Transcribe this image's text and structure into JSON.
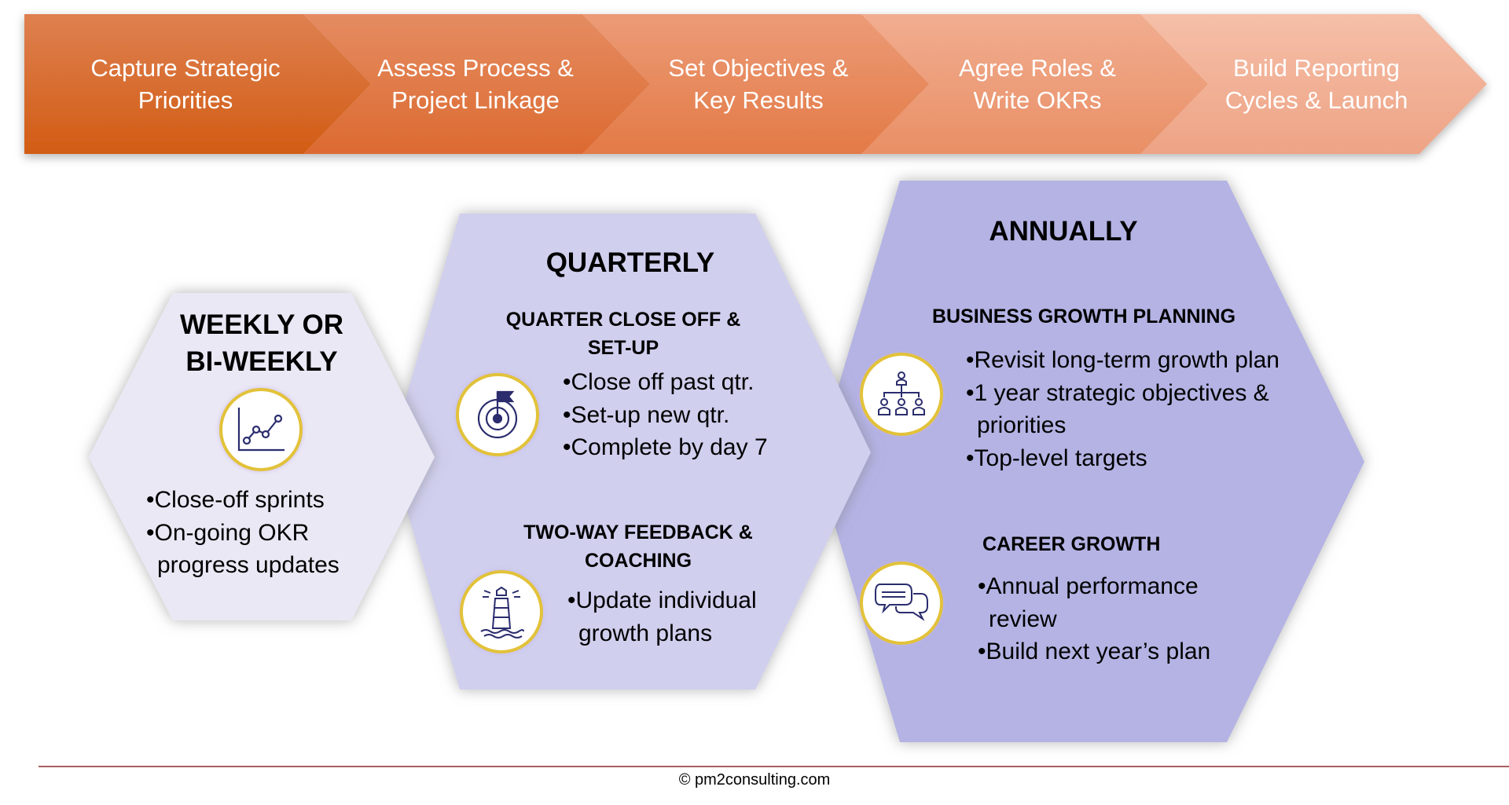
{
  "process_steps": [
    {
      "label": "Capture Strategic Priorities",
      "color": "#d9661f"
    },
    {
      "label": "Assess Process & Project Linkage",
      "color": "#e07a45"
    },
    {
      "label": "Set Objectives & Key Results",
      "color": "#e68c62"
    },
    {
      "label": "Agree Roles & Write OKRs",
      "color": "#eea07f"
    },
    {
      "label": "Build Reporting Cycles & Launch",
      "color": "#f3b59c"
    }
  ],
  "weekly": {
    "title_line1": "WEEKLY OR",
    "title_line2": "BI-WEEKLY",
    "icon": "line-chart-icon",
    "color": "#ebe8f5",
    "bullets": [
      "•Close-off sprints",
      "•On-going OKR progress updates"
    ]
  },
  "quarterly": {
    "title": "QUARTERLY",
    "color": "#d0cfee",
    "section1": {
      "heading_line1": "QUARTER CLOSE OFF &",
      "heading_line2": "SET-UP",
      "icon": "target-flag-icon",
      "bullets": [
        "•Close off past qtr.",
        "•Set-up new qtr.",
        "•Complete by day 7"
      ]
    },
    "section2": {
      "heading_line1": "TWO-WAY FEEDBACK &",
      "heading_line2": "COACHING",
      "icon": "lighthouse-icon",
      "bullets": [
        "•Update individual growth plans"
      ]
    }
  },
  "annually": {
    "title": "ANNUALLY",
    "color": "#b4b3e4",
    "section1": {
      "heading": "BUSINESS GROWTH PLANNING",
      "icon": "org-chart-icon",
      "bullets": [
        "•Revisit long-term growth plan",
        "•1 year strategic objectives & priorities",
        "•Top-level targets"
      ]
    },
    "section2": {
      "heading": "CAREER GROWTH",
      "icon": "speech-bubbles-icon",
      "bullets": [
        "•Annual performance review",
        "•Build next year’s plan"
      ]
    }
  },
  "footer": {
    "copyright": "© pm2consulting.com",
    "line_color": "#8b2a2a"
  }
}
